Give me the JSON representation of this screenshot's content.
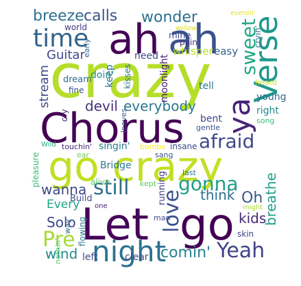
{
  "words": [
    {
      "text": "crazy",
      "color": "#b5de2b"
    },
    {
      "text": "Chorus",
      "color": "#440154"
    },
    {
      "text": "go crazy",
      "color": "#c2df23"
    },
    {
      "text": "ah",
      "color": "#440154"
    },
    {
      "text": "ah",
      "color": "#3b528b"
    },
    {
      "text": "Let",
      "color": "#450559"
    },
    {
      "text": "go",
      "color": "#440154"
    },
    {
      "text": "night",
      "color": "#2c728e"
    },
    {
      "text": "Verse",
      "color": "#1f988b"
    },
    {
      "text": "ya",
      "color": "#482475"
    },
    {
      "text": "time",
      "color": "#33638d"
    },
    {
      "text": "sweet",
      "color": "#22a884"
    },
    {
      "text": "love",
      "color": "#3b528b"
    },
    {
      "text": "Yeah",
      "color": "#404387"
    },
    {
      "text": "afraid",
      "color": "#3e4989"
    },
    {
      "text": "still",
      "color": "#2e6e8e"
    },
    {
      "text": "gonna",
      "color": "#1f9e89"
    },
    {
      "text": "Pre",
      "color": "#a5db36"
    },
    {
      "text": "breeze",
      "color": "#2d708e"
    },
    {
      "text": "calls",
      "color": "#3b528b"
    },
    {
      "text": "wonder",
      "color": "#2d708e"
    },
    {
      "text": "everybody",
      "color": "#2a788e"
    },
    {
      "text": "devil",
      "color": "#46327e"
    },
    {
      "text": "wanna",
      "color": "#3e4989"
    },
    {
      "text": "Every",
      "color": "#1fa287"
    },
    {
      "text": "Solo",
      "color": "#3e4989"
    },
    {
      "text": "wind",
      "color": "#23898e"
    },
    {
      "text": "comin'",
      "color": "#26828e"
    },
    {
      "text": "kids",
      "color": "#482677"
    },
    {
      "text": "breathe",
      "color": "#1fa088"
    },
    {
      "text": "think",
      "color": "#2e6f8e"
    },
    {
      "text": "Oh",
      "color": "#38588c"
    },
    {
      "text": "Guitar",
      "color": "#404688"
    },
    {
      "text": "stream",
      "color": "#3f4788"
    },
    {
      "text": "whisper",
      "color": "#b8de29"
    },
    {
      "text": "mine",
      "color": "#3f4889"
    },
    {
      "text": "world",
      "color": "#453781"
    },
    {
      "text": "doin'",
      "color": "#21918c"
    },
    {
      "text": "need",
      "color": "#3f4889"
    },
    {
      "text": "easy",
      "color": "#365c8d"
    },
    {
      "text": "dream",
      "color": "#31688e"
    },
    {
      "text": "fine",
      "color": "#3a548c"
    },
    {
      "text": "keep",
      "color": "#2d708e"
    },
    {
      "text": "kisses",
      "color": "#2a768e"
    },
    {
      "text": "moonlight",
      "color": "#481a6c"
    },
    {
      "text": "tell",
      "color": "#29798e"
    },
    {
      "text": "young",
      "color": "#31668e"
    },
    {
      "text": "right",
      "color": "#23898e"
    },
    {
      "text": "song",
      "color": "#3dbc74"
    },
    {
      "text": "gentle",
      "color": "#3a548c"
    },
    {
      "text": "bent",
      "color": "#3f4889"
    },
    {
      "text": "cryin'",
      "color": "#2a778e"
    },
    {
      "text": "heard",
      "color": "#c8e020"
    },
    {
      "text": "pain",
      "color": "#453882"
    },
    {
      "text": "willow",
      "color": "#d8e219"
    },
    {
      "text": "evenin'",
      "color": "#e5e419"
    },
    {
      "text": "early",
      "color": "#34618d"
    },
    {
      "text": "cry",
      "color": "#46307e"
    },
    {
      "text": "leaves",
      "color": "#3b518b"
    },
    {
      "text": "singin'",
      "color": "#287c8e"
    },
    {
      "text": "touchin'",
      "color": "#482576"
    },
    {
      "text": "bombs",
      "color": "#fde725"
    },
    {
      "text": "insane",
      "color": "#3e4989"
    },
    {
      "text": "Wild",
      "color": "#25ab82"
    },
    {
      "text": "ear",
      "color": "#6ece58"
    },
    {
      "text": "sang",
      "color": "#3c508b"
    },
    {
      "text": "last",
      "color": "#2d708e"
    },
    {
      "text": "Bridge",
      "color": "#2a778e"
    },
    {
      "text": "pleasure",
      "color": "#37b878"
    },
    {
      "text": "alive",
      "color": "#58c765"
    },
    {
      "text": "kept",
      "color": "#5ec962"
    },
    {
      "text": "Build",
      "color": "#3d4d8a"
    },
    {
      "text": "one",
      "color": "#482071"
    },
    {
      "text": "running",
      "color": "#433d84"
    },
    {
      "text": "might",
      "color": "#a8db34"
    },
    {
      "text": "man",
      "color": "#404587"
    },
    {
      "text": "skin",
      "color": "#414487"
    },
    {
      "text": "flowing",
      "color": "#2a788e"
    },
    {
      "text": "way",
      "color": "#31678e"
    },
    {
      "text": "nothin'",
      "color": "#5cc863"
    },
    {
      "text": "left",
      "color": "#3f4788"
    },
    {
      "text": "clear",
      "color": "#404588"
    }
  ]
}
